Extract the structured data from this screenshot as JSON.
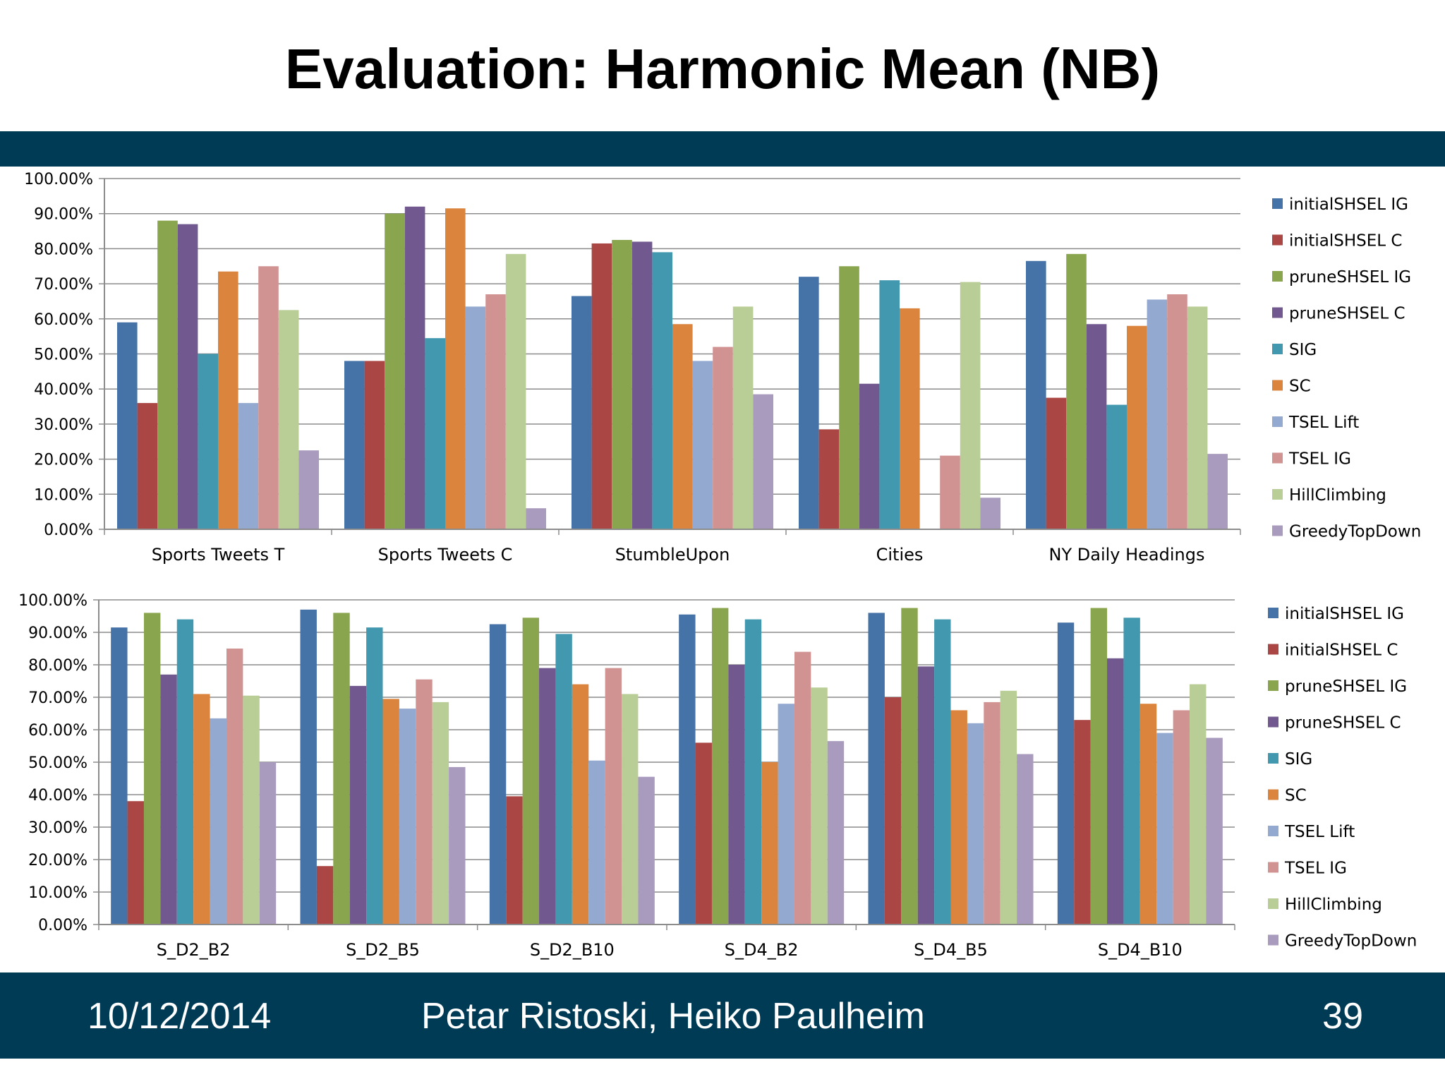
{
  "slide": {
    "title": "Evaluation: Harmonic Mean (NB)",
    "footer": {
      "date": "10/12/2014",
      "authors": "Petar Ristoski, Heiko Paulheim",
      "page": "39"
    },
    "band_color": "#003b55"
  },
  "chart_data": [
    {
      "type": "bar",
      "categories": [
        "Sports Tweets T",
        "Sports Tweets C",
        "StumbleUpon",
        "Cities",
        "NY Daily Headings"
      ],
      "ylim": [
        0,
        100
      ],
      "yticks": [
        "0.00%",
        "10.00%",
        "20.00%",
        "30.00%",
        "40.00%",
        "50.00%",
        "60.00%",
        "70.00%",
        "80.00%",
        "90.00%",
        "100.00%"
      ],
      "grid": true,
      "legend": "right",
      "series": [
        {
          "name": "initialSHSEL IG",
          "color": "#4572a7",
          "values": [
            59,
            48,
            66.5,
            72,
            76.5
          ]
        },
        {
          "name": "initialSHSEL C",
          "color": "#aa4643",
          "values": [
            36,
            48,
            81.5,
            28.5,
            37.5
          ]
        },
        {
          "name": "pruneSHSEL IG",
          "color": "#89a54e",
          "values": [
            88,
            90,
            82.5,
            75,
            78.5
          ]
        },
        {
          "name": "pruneSHSEL C",
          "color": "#71588f",
          "values": [
            87,
            92,
            82,
            41.5,
            58.5
          ]
        },
        {
          "name": "SIG",
          "color": "#4198af",
          "values": [
            50,
            54.5,
            79,
            71,
            35.5
          ]
        },
        {
          "name": "SC",
          "color": "#db843d",
          "values": [
            73.5,
            91.5,
            58.5,
            63,
            58
          ]
        },
        {
          "name": "TSEL Lift",
          "color": "#93a9cf",
          "values": [
            36,
            63.5,
            48,
            0,
            65.5
          ]
        },
        {
          "name": "TSEL IG",
          "color": "#d19392",
          "values": [
            75,
            67,
            52,
            21,
            67
          ]
        },
        {
          "name": "HillClimbing",
          "color": "#b9cd96",
          "values": [
            62.5,
            78.5,
            63.5,
            70.5,
            63.5
          ]
        },
        {
          "name": "GreedyTopDown",
          "color": "#a99bbd",
          "values": [
            22.5,
            6,
            38.5,
            9,
            21.5
          ]
        }
      ]
    },
    {
      "type": "bar",
      "categories": [
        "S_D2_B2",
        "S_D2_B5",
        "S_D2_B10",
        "S_D4_B2",
        "S_D4_B5",
        "S_D4_B10"
      ],
      "ylim": [
        0,
        100
      ],
      "yticks": [
        "0.00%",
        "10.00%",
        "20.00%",
        "30.00%",
        "40.00%",
        "50.00%",
        "60.00%",
        "70.00%",
        "80.00%",
        "90.00%",
        "100.00%"
      ],
      "grid": true,
      "legend": "right",
      "series": [
        {
          "name": "initialSHSEL IG",
          "color": "#4572a7",
          "values": [
            91.5,
            97,
            92.5,
            95.5,
            96,
            93
          ]
        },
        {
          "name": "initialSHSEL C",
          "color": "#aa4643",
          "values": [
            38,
            18,
            39.5,
            56,
            70,
            63
          ]
        },
        {
          "name": "pruneSHSEL IG",
          "color": "#89a54e",
          "values": [
            96,
            96,
            94.5,
            97.5,
            97.5,
            97.5
          ]
        },
        {
          "name": "pruneSHSEL C",
          "color": "#71588f",
          "values": [
            77,
            73.5,
            79,
            80,
            79.5,
            82
          ]
        },
        {
          "name": "SIG",
          "color": "#4198af",
          "values": [
            94,
            91.5,
            89.5,
            94,
            94,
            94.5
          ]
        },
        {
          "name": "SC",
          "color": "#db843d",
          "values": [
            71,
            69.5,
            74,
            50,
            66,
            68
          ]
        },
        {
          "name": "TSEL Lift",
          "color": "#93a9cf",
          "values": [
            63.5,
            66.5,
            50.5,
            68,
            62,
            59
          ]
        },
        {
          "name": "TSEL IG",
          "color": "#d19392",
          "values": [
            85,
            75.5,
            79,
            84,
            68.5,
            66
          ]
        },
        {
          "name": "HillClimbing",
          "color": "#b9cd96",
          "values": [
            70.5,
            68.5,
            71,
            73,
            72,
            74
          ]
        },
        {
          "name": "GreedyTopDown",
          "color": "#a99bbd",
          "values": [
            50,
            48.5,
            45.5,
            56.5,
            52.5,
            57.5
          ]
        }
      ]
    }
  ]
}
